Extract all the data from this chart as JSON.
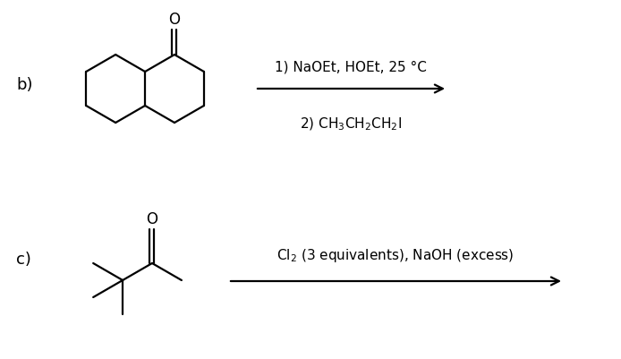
{
  "background_color": "#ffffff",
  "fig_width": 6.94,
  "fig_height": 4.02,
  "dpi": 100,
  "label_b": "b)",
  "label_c": "c)",
  "font_size_label": 13,
  "font_size_reaction": 11,
  "font_size_O": 12,
  "reaction_b_line1": "1) NaOEt, HOEt, 25 °C",
  "reaction_b_line2": "2) CH$_3$CH$_2$CH$_2$I",
  "reaction_c_line1": "Cl$_2$ (3 equivalents), NaOH (excess)"
}
